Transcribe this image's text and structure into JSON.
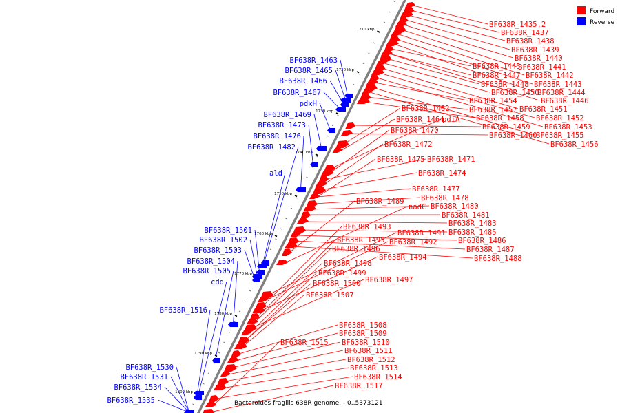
{
  "caption": "Bacteroides fragilis 638R genome. - 0..5373121",
  "legend": [
    {
      "label": "Forward",
      "color": "#ff0000"
    },
    {
      "label": "Reverse",
      "color": "#0000ff"
    }
  ],
  "colors": {
    "forward": "#ff0000",
    "reverse": "#0000ff",
    "backbone": "#808080"
  },
  "scale_labels": [
    "1710 kbp",
    "1720 kbp",
    "1730 kbp",
    "1740 kbp",
    "1750 kbp",
    "1760 kbp",
    "1770 kbp",
    "1780 kbp",
    "1790 kbp",
    "1800 kbp"
  ],
  "forward_genes": [
    "BF638R_1435.2",
    "BF638R_1437",
    "BF638R_1438",
    "BF638R_1439",
    "BF638R_1440",
    "BF638R_1441",
    "BF638R_1442",
    "BF638R_1443",
    "BF638R_1444",
    "BF638R_1445",
    "BF638R_1446",
    "BF638R_1447",
    "BF638R_1448",
    "BF638R_1450",
    "BF638R_1451",
    "BF638R_1452",
    "BF638R_1453",
    "BF638R_1454",
    "BF638R_1455",
    "BF638R_1456",
    "BF638R_1457",
    "BF638R_1458",
    "BF638R_1459",
    "BF638R_1460",
    "BF638R_1462",
    "BF638R_1464",
    "pdiA",
    "BF638R_1470",
    "BF638R_1471",
    "BF638R_1472",
    "BF638R_1474",
    "BF638R_1475",
    "BF638R_1477",
    "BF638R_1478",
    "BF638R_1480",
    "BF638R_1481",
    "BF638R_1483",
    "BF638R_1485",
    "BF638R_1486",
    "BF638R_1487",
    "BF638R_1488",
    "BF638R_1489",
    "nadC",
    "BF638R_1491",
    "BF638R_1492",
    "BF638R_1493",
    "BF638R_1494",
    "BF638R_1495",
    "BF638R_1496",
    "BF638R_1497",
    "BF638R_1498",
    "BF638R_1499",
    "BF638R_1500",
    "BF638R_1507",
    "BF638R_1508",
    "BF638R_1509",
    "BF638R_1510",
    "BF638R_1511",
    "BF638R_1512",
    "BF638R_1513",
    "BF638R_1514",
    "BF638R_1515",
    "BF638R_1517"
  ],
  "reverse_genes": [
    "BF638R_1463",
    "BF638R_1465",
    "BF638R_1466",
    "BF638R_1467",
    "pdxH",
    "BF638R_1469",
    "BF638R_1473",
    "BF638R_1476",
    "BF638R_1482",
    "ald",
    "BF638R_1501",
    "BF638R_1502",
    "BF638R_1503",
    "BF638R_1504",
    "BF638R_1505",
    "cdd",
    "BF638R_1516",
    "BF638R_1530",
    "BF638R_1531",
    "BF638R_1534",
    "BF638R_1535"
  ]
}
